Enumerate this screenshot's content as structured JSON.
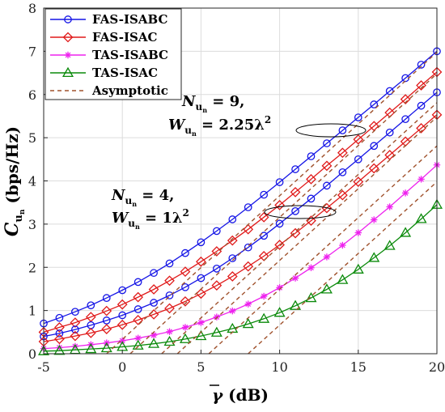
{
  "chart_data": {
    "type": "line",
    "xlabel": "γ̅ (dB)",
    "ylabel": "C̅_{u_n} (bps/Hz)",
    "xlim": [
      -5,
      20
    ],
    "ylim": [
      0,
      8
    ],
    "xticks": [
      "-5",
      "0",
      "5",
      "10",
      "15",
      "20"
    ],
    "yticks": [
      "0",
      "1",
      "2",
      "3",
      "4",
      "5",
      "6",
      "7",
      "8"
    ],
    "grid": true,
    "legend_position": "top-left",
    "legend": [
      {
        "label": "FAS-ISABC",
        "color": "#1515e6",
        "marker": "circle",
        "dash": false
      },
      {
        "label": "FAS-ISAC",
        "color": "#e01a1a",
        "marker": "diamond",
        "dash": false
      },
      {
        "label": "TAS-ISABC",
        "color": "#ee22ee",
        "marker": "star",
        "dash": false
      },
      {
        "label": "TAS-ISAC",
        "color": "#0a8a0a",
        "marker": "triangle",
        "dash": false
      },
      {
        "label": "Asymptotic",
        "color": "#a0522d",
        "marker": "none",
        "dash": true
      }
    ],
    "annotations": [
      {
        "line1": "N",
        "sub1": "u",
        "subsub1": "n",
        "eq1": " = 9,",
        "line2": "W",
        "sub2": "u",
        "subsub2": "n",
        "eq2": " = 2.25λ",
        "sup2": "2"
      },
      {
        "line1": "N",
        "sub1": "u",
        "subsub1": "n",
        "eq1": " = 4,",
        "line2": "W",
        "sub2": "u",
        "subsub2": "n",
        "eq2": " = 1λ",
        "sup2": "2"
      }
    ],
    "x": [
      -5,
      -4,
      -3,
      -2,
      -1,
      0,
      1,
      2,
      3,
      4,
      5,
      6,
      7,
      8,
      9,
      10,
      11,
      12,
      13,
      14,
      15,
      16,
      17,
      18,
      19,
      20
    ],
    "series": [
      {
        "legend": "FAS-ISABC",
        "group": "N=9",
        "color": "#1515e6",
        "marker": "circle",
        "values": [
          0.7,
          0.83,
          0.97,
          1.12,
          1.29,
          1.47,
          1.66,
          1.87,
          2.09,
          2.33,
          2.58,
          2.84,
          3.11,
          3.39,
          3.68,
          3.97,
          4.27,
          4.57,
          4.87,
          5.17,
          5.47,
          5.77,
          6.08,
          6.38,
          6.69,
          7.0
        ]
      },
      {
        "legend": "FAS-ISAC",
        "group": "N=9",
        "color": "#e01a1a",
        "marker": "diamond",
        "values": [
          0.5,
          0.61,
          0.72,
          0.85,
          0.99,
          1.14,
          1.31,
          1.49,
          1.69,
          1.9,
          2.13,
          2.37,
          2.62,
          2.88,
          3.16,
          3.44,
          3.74,
          4.04,
          4.35,
          4.65,
          4.96,
          5.27,
          5.58,
          5.89,
          6.21,
          6.52
        ]
      },
      {
        "legend": "FAS-ISABC",
        "group": "N=4",
        "color": "#1515e6",
        "marker": "circle",
        "values": [
          0.4,
          0.47,
          0.56,
          0.66,
          0.77,
          0.89,
          1.03,
          1.18,
          1.35,
          1.54,
          1.75,
          1.97,
          2.21,
          2.46,
          2.73,
          3.01,
          3.3,
          3.59,
          3.89,
          4.2,
          4.5,
          4.81,
          5.12,
          5.43,
          5.74,
          6.05
        ]
      },
      {
        "legend": "FAS-ISAC",
        "group": "N=4",
        "color": "#e01a1a",
        "marker": "diamond",
        "values": [
          0.28,
          0.34,
          0.41,
          0.48,
          0.57,
          0.67,
          0.78,
          0.91,
          1.05,
          1.21,
          1.39,
          1.58,
          1.79,
          2.02,
          2.26,
          2.52,
          2.79,
          3.08,
          3.37,
          3.67,
          3.98,
          4.29,
          4.6,
          4.91,
          5.22,
          5.53
        ]
      },
      {
        "legend": "TAS-ISABC",
        "group": "N=4",
        "color": "#ee22ee",
        "marker": "star",
        "values": [
          0.12,
          0.14,
          0.17,
          0.21,
          0.25,
          0.3,
          0.36,
          0.43,
          0.51,
          0.61,
          0.72,
          0.85,
          0.99,
          1.15,
          1.33,
          1.53,
          1.75,
          1.99,
          2.24,
          2.51,
          2.8,
          3.1,
          3.4,
          3.72,
          4.04,
          4.37
        ]
      },
      {
        "legend": "TAS-ISAC",
        "group": "N=4",
        "color": "#0a8a0a",
        "marker": "triangle",
        "values": [
          0.06,
          0.07,
          0.09,
          0.11,
          0.13,
          0.16,
          0.19,
          0.23,
          0.28,
          0.34,
          0.41,
          0.49,
          0.58,
          0.69,
          0.81,
          0.95,
          1.11,
          1.29,
          1.49,
          1.71,
          1.95,
          2.22,
          2.5,
          2.8,
          3.12,
          3.45
        ]
      },
      {
        "legend": "Asymptotic",
        "color": "#a0522d",
        "dash": true,
        "x": [
          -1,
          20
        ],
        "values": [
          0,
          6.98
        ]
      },
      {
        "legend": "Asymptotic",
        "color": "#a0522d",
        "dash": true,
        "x": [
          0.5,
          20
        ],
        "values": [
          0,
          6.48
        ]
      },
      {
        "legend": "Asymptotic",
        "color": "#a0522d",
        "dash": true,
        "x": [
          2.5,
          20
        ],
        "values": [
          0,
          5.81
        ]
      },
      {
        "legend": "Asymptotic",
        "color": "#a0522d",
        "dash": true,
        "x": [
          3.5,
          20
        ],
        "values": [
          0,
          5.48
        ]
      },
      {
        "legend": "Asymptotic",
        "color": "#a0522d",
        "dash": true,
        "x": [
          5.5,
          20
        ],
        "values": [
          0,
          4.81
        ]
      },
      {
        "legend": "Asymptotic",
        "color": "#a0522d",
        "dash": true,
        "x": [
          8,
          20
        ],
        "values": [
          0,
          3.98
        ]
      }
    ]
  }
}
